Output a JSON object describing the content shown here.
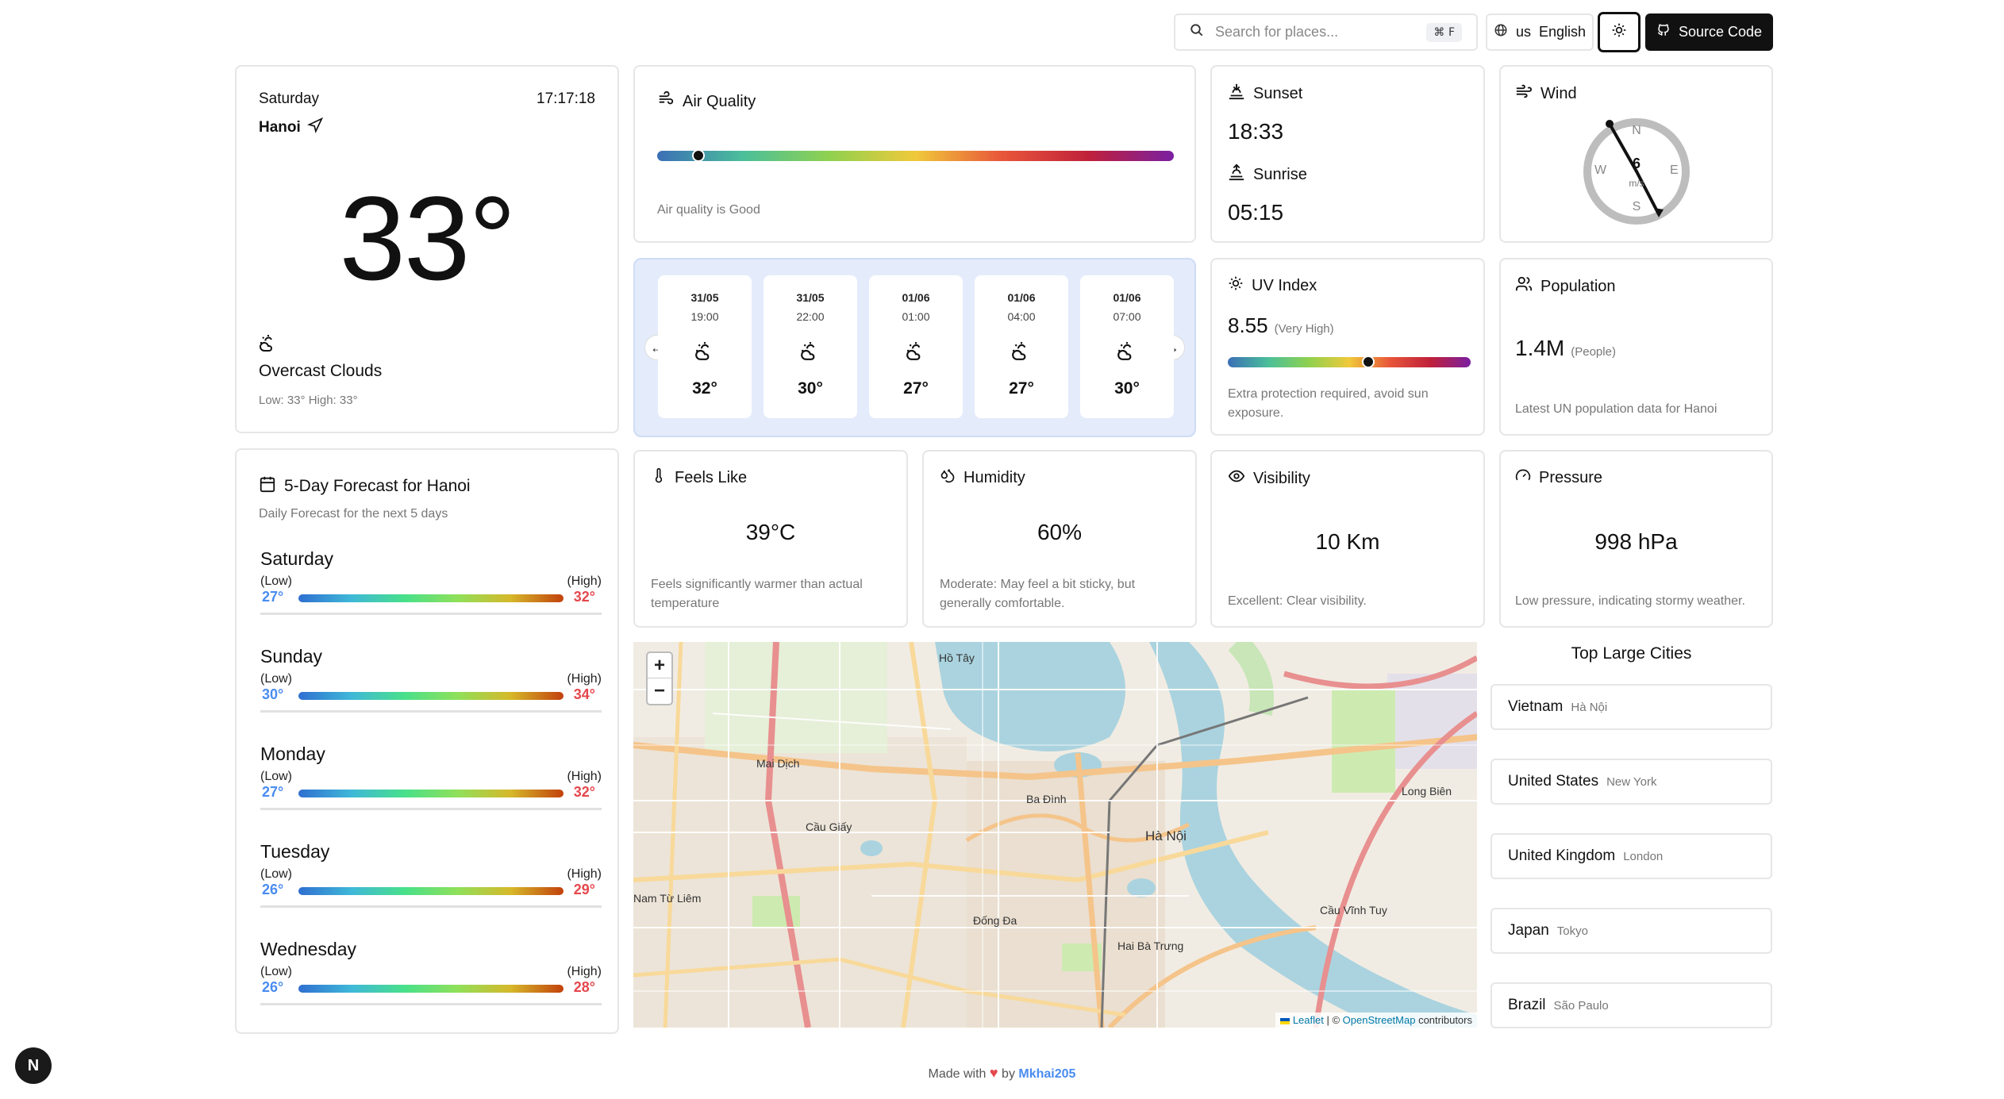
{
  "header": {
    "search_placeholder": "Search for places...",
    "shortcut_cmd": "⌘",
    "shortcut_key": "F",
    "lang_code": "us",
    "lang_label": "English",
    "source_label": "Source Code"
  },
  "current": {
    "day": "Saturday",
    "time": "17:17:18",
    "city": "Hanoi",
    "temp": "33°",
    "condition": "Overcast Clouds",
    "low_high": "Low: 33°  High: 33°"
  },
  "air_quality": {
    "title": "Air Quality",
    "status": "Air quality is Good",
    "level": 0.08
  },
  "sun": {
    "sunset_label": "Sunset",
    "sunset_time": "18:33",
    "sunrise_label": "Sunrise",
    "sunrise_time": "05:15"
  },
  "wind": {
    "title": "Wind",
    "speed": "6",
    "unit": "m/s",
    "n": "N",
    "s": "S",
    "e": "E",
    "w": "W"
  },
  "hourly": [
    {
      "date": "31/05",
      "time": "19:00",
      "temp": "32°"
    },
    {
      "date": "31/05",
      "time": "22:00",
      "temp": "30°"
    },
    {
      "date": "01/06",
      "time": "01:00",
      "temp": "27°"
    },
    {
      "date": "01/06",
      "time": "04:00",
      "temp": "27°"
    },
    {
      "date": "01/06",
      "time": "07:00",
      "temp": "30°"
    }
  ],
  "uv": {
    "title": "UV Index",
    "value": "8.55",
    "level": "(Very High)",
    "desc": "Extra protection required, avoid sun exposure.",
    "position": 0.58
  },
  "population": {
    "title": "Population",
    "value": "1.4M",
    "unit": "(People)",
    "desc": "Latest UN population data for Hanoi"
  },
  "forecast": {
    "title": "5-Day Forecast for Hanoi",
    "subtitle": "Daily Forecast for the next 5 days",
    "low_label": "(Low)",
    "high_label": "(High)",
    "days": [
      {
        "day": "Saturday",
        "low": "27°",
        "high": "32°"
      },
      {
        "day": "Sunday",
        "low": "30°",
        "high": "34°"
      },
      {
        "day": "Monday",
        "low": "27°",
        "high": "32°"
      },
      {
        "day": "Tuesday",
        "low": "26°",
        "high": "29°"
      },
      {
        "day": "Wednesday",
        "low": "26°",
        "high": "28°"
      }
    ]
  },
  "feels_like": {
    "title": "Feels Like",
    "value": "39°C",
    "desc": "Feels significantly warmer than actual temperature"
  },
  "humidity": {
    "title": "Humidity",
    "value": "60%",
    "desc": "Moderate: May feel a bit sticky, but generally comfortable."
  },
  "visibility": {
    "title": "Visibility",
    "value": "10 Km",
    "desc": "Excellent: Clear visibility."
  },
  "pressure": {
    "title": "Pressure",
    "value": "998 hPa",
    "desc": "Low pressure, indicating stormy weather."
  },
  "map": {
    "zoom_in": "+",
    "zoom_out": "−",
    "attrib_leaflet": "Leaflet",
    "attrib_sep": " | © ",
    "attrib_osm": "OpenStreetMap",
    "attrib_contrib": " contributors",
    "labels": [
      "Ba Đình",
      "Hà Nội",
      "Cầu Giấy",
      "Đống Đa",
      "Hai Bà Trưng",
      "Nam Từ Liêm",
      "Long Biên",
      "Cầu Vĩnh Tuy",
      "Mai Dịch",
      "Hồ Tây"
    ]
  },
  "cities": {
    "title": "Top Large Cities",
    "items": [
      {
        "country": "Vietnam",
        "city": "Hà Nội"
      },
      {
        "country": "United States",
        "city": "New York"
      },
      {
        "country": "United Kingdom",
        "city": "London"
      },
      {
        "country": "Japan",
        "city": "Tokyo"
      },
      {
        "country": "Brazil",
        "city": "São Paulo"
      }
    ]
  },
  "footer": {
    "made_with": "Made with",
    "by": "by",
    "author": "Mkhai205"
  },
  "colors": {
    "accent": "#111111",
    "low_temp": "#4a8cf0",
    "high_temp": "#e5484d",
    "heart": "#e5484d"
  }
}
